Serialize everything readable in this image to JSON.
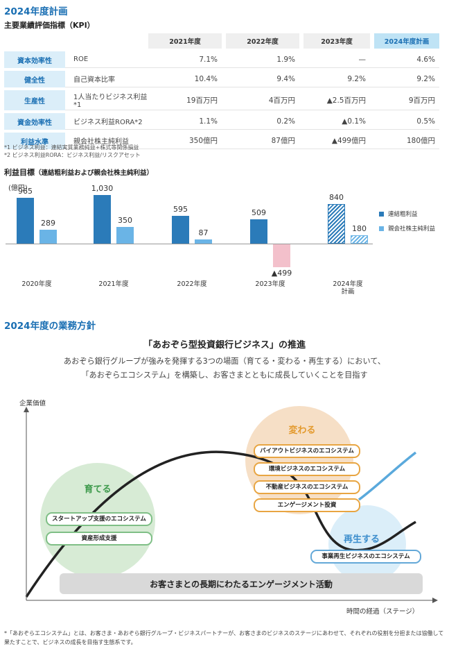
{
  "plan": {
    "title": "2024年度計画",
    "kpi_title": "主要業績評価指標（KPI）",
    "headers": [
      "2021年度",
      "2022年度",
      "2023年度",
      "2024年度計画"
    ],
    "rows": [
      {
        "category": "資本効率性",
        "item": "ROE",
        "v2021": "7.1%",
        "v2022": "1.9%",
        "v2023": "—",
        "v2024": "4.6%"
      },
      {
        "category": "健全性",
        "item": "自己資本比率",
        "v2021": "10.4%",
        "v2022": "9.4%",
        "v2023": "9.2%",
        "v2024": "9.2%"
      },
      {
        "category": "生産性",
        "item": "1人当たりビジネス利益*1",
        "v2021": "19百万円",
        "v2022": "4百万円",
        "v2023": "▲2.5百万円",
        "v2024": "9百万円"
      },
      {
        "category": "資金効率性",
        "item": "ビジネス利益RORA*2",
        "v2021": "1.1%",
        "v2022": "0.2%",
        "v2023": "▲0.1%",
        "v2024": "0.5%"
      },
      {
        "category": "利益水準",
        "item": "親会社株主純利益",
        "v2021": "350億円",
        "v2022": "87億円",
        "v2023": "▲499億円",
        "v2024": "180億円"
      }
    ],
    "note1": "*1 ビジネス利益：連結実質業務純益+株式等関係損益",
    "note2": "*2 ビジネス利益RORA：ビジネス利益/リスクアセット"
  },
  "chart_data": {
    "type": "bar",
    "title": "利益目標",
    "subtitle": "（連結粗利益および親会社株主純利益）",
    "ylabel": "(億円)",
    "categories": [
      "2020年度",
      "2021年度",
      "2022年度",
      "2023年度",
      "2024年度計画"
    ],
    "series": [
      {
        "name": "連結粗利益",
        "values": [
          965,
          1030,
          595,
          509,
          840
        ],
        "value_labels": [
          "965",
          "1,030",
          "595",
          "509",
          "840"
        ],
        "color": "#2b7bb9"
      },
      {
        "name": "親会社株主純利益",
        "values": [
          289,
          350,
          87,
          -499,
          180
        ],
        "value_labels": [
          "289",
          "350",
          "87",
          "▲499",
          "180"
        ],
        "color": "#6ab4e6",
        "negative_color": "#f3c0cb"
      }
    ],
    "last_category_hatched": true,
    "legend_position": "right",
    "grid": false
  },
  "policy": {
    "title": "2024年度の業務方針",
    "headline": "「あおぞら型投資銀行ビジネス」の推進",
    "desc1": "あおぞら銀行グループが強みを発揮する3つの場面（育てる・変わる・再生する）において、",
    "desc2": "「あおぞらエコシステム」を構築し、お客さまとともに成長していくことを目指す",
    "y_axis": "企業価値",
    "x_axis": "時間の経過（ステージ）",
    "stage_grow": {
      "label": "育てる",
      "items": [
        "スタートアップ支援のエコシステム",
        "資産形成支援"
      ]
    },
    "stage_change": {
      "label": "変わる",
      "items": [
        "バイアウトビジネスのエコシステム",
        "環境ビジネスのエコシステム",
        "不動産ビジネスのエコシステム",
        "エンゲージメント投資"
      ]
    },
    "stage_revive": {
      "label": "再生する",
      "items": [
        "事業再生ビジネスのエコシステム"
      ]
    },
    "engagement": "お客さまとの長期にわたるエンゲージメント活動",
    "footnote": "*「あおぞらエコシステム」とは、お客さま・あおぞら銀行グループ・ビジネスパートナーが、お客さまのビジネスのステージにあわせて、それぞれの役割を分担または協働して果たすことで、ビジネスの成長を目指す生態系です。"
  }
}
